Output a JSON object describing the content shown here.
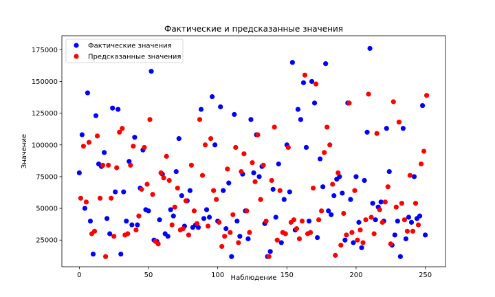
{
  "chart_data": {
    "type": "scatter",
    "title": "Фактические и предсказанные значения",
    "xlabel": "Наблюдение",
    "ylabel": "Значение",
    "xlim": [
      -12.6,
      264.6
    ],
    "ylim": [
      4000,
      186000
    ],
    "xticks": [
      0,
      50,
      100,
      150,
      200,
      250
    ],
    "xtick_labels": [
      "0",
      "50",
      "100",
      "150",
      "200",
      "250"
    ],
    "yticks": [
      25000,
      50000,
      75000,
      100000,
      125000,
      150000,
      175000
    ],
    "ytick_labels": [
      "25000",
      "50000",
      "75000",
      "100000",
      "125000",
      "150000",
      "175000"
    ],
    "grid": false,
    "legend_position": "top-left",
    "series": [
      {
        "name": "Фактические значения",
        "color": "#0000ff",
        "x": [
          0,
          2,
          4,
          6,
          8,
          10,
          12,
          14,
          16,
          18,
          20,
          22,
          24,
          26,
          28,
          30,
          32,
          34,
          36,
          38,
          40,
          42,
          44,
          46,
          48,
          50,
          52,
          54,
          56,
          58,
          60,
          62,
          64,
          66,
          68,
          70,
          72,
          74,
          76,
          78,
          80,
          82,
          84,
          86,
          88,
          90,
          92,
          94,
          96,
          98,
          100,
          102,
          104,
          106,
          108,
          110,
          112,
          114,
          116,
          118,
          120,
          122,
          124,
          126,
          128,
          130,
          132,
          134,
          136,
          138,
          140,
          142,
          144,
          146,
          148,
          150,
          152,
          154,
          156,
          158,
          160,
          162,
          164,
          166,
          168,
          170,
          172,
          174,
          176,
          178,
          180,
          182,
          184,
          186,
          188,
          190,
          192,
          194,
          196,
          198,
          200,
          202,
          204,
          206,
          208,
          210,
          212,
          214,
          216,
          218,
          220,
          222,
          224,
          226,
          228,
          230,
          232,
          234,
          236,
          238,
          240,
          242,
          244,
          246,
          248,
          250
        ],
        "y": [
          78000,
          108000,
          50000,
          141000,
          40000,
          14000,
          123000,
          85000,
          83000,
          94000,
          42000,
          30000,
          129000,
          63000,
          128000,
          14000,
          63000,
          40000,
          87000,
          37000,
          106000,
          37000,
          66000,
          96000,
          49000,
          48000,
          158000,
          25000,
          24000,
          41000,
          77000,
          30000,
          28000,
          49000,
          44000,
          79000,
          105000,
          60000,
          36000,
          56000,
          64000,
          35000,
          37000,
          35000,
          128000,
          42000,
          49000,
          43000,
          138000,
          100000,
          40000,
          130000,
          64000,
          34000,
          70000,
          12000,
          124000,
          40000,
          28000,
          77000,
          48000,
          26000,
          120000,
          78000,
          108000,
          75000,
          83000,
          38000,
          12000,
          16000,
          65000,
          43000,
          85000,
          23000,
          57000,
          100000,
          63000,
          165000,
          33000,
          128000,
          120000,
          149000,
          98000,
          40000,
          150000,
          133000,
          27000,
          89000,
          67000,
          164000,
          48000,
          45000,
          60000,
          73000,
          75000,
          62000,
          25000,
          133000,
          57000,
          23000,
          75000,
          39000,
          19000,
          72000,
          110000,
          176000,
          54000,
          41000,
          51000,
          55000,
          40000,
          113000,
          79000,
          21000,
          29000,
          40000,
          12000,
          113000,
          26000,
          43000,
          39000,
          75000,
          42000,
          44000,
          131000,
          29000
        ]
      },
      {
        "name": "Предсказанные значения",
        "color": "#ff0000",
        "x": [
          1,
          3,
          5,
          7,
          9,
          11,
          13,
          15,
          17,
          19,
          21,
          23,
          25,
          27,
          29,
          31,
          33,
          35,
          37,
          39,
          41,
          43,
          45,
          47,
          49,
          51,
          53,
          55,
          57,
          59,
          61,
          63,
          65,
          67,
          69,
          71,
          73,
          75,
          77,
          79,
          81,
          83,
          85,
          87,
          89,
          91,
          93,
          95,
          97,
          99,
          101,
          103,
          105,
          107,
          109,
          111,
          113,
          115,
          117,
          119,
          121,
          123,
          125,
          127,
          129,
          131,
          133,
          135,
          137,
          139,
          141,
          143,
          145,
          147,
          149,
          151,
          153,
          155,
          157,
          159,
          161,
          163,
          165,
          167,
          169,
          171,
          173,
          175,
          177,
          179,
          181,
          183,
          185,
          187,
          189,
          191,
          193,
          195,
          197,
          199,
          201,
          203,
          205,
          207,
          209,
          211,
          213,
          215,
          217,
          219,
          221,
          223,
          225,
          227,
          229,
          231,
          233,
          235,
          237,
          239,
          241,
          243,
          245,
          247,
          249,
          251
        ],
        "y": [
          58000,
          99000,
          55000,
          102000,
          30000,
          32000,
          107000,
          58000,
          84000,
          12000,
          84000,
          58000,
          28000,
          82000,
          110000,
          113000,
          29000,
          30000,
          84000,
          99000,
          33000,
          44000,
          65000,
          98000,
          69000,
          120000,
          61000,
          24000,
          22000,
          78000,
          74000,
          91000,
          72000,
          37000,
          51000,
          66000,
          33000,
          34000,
          56000,
          29000,
          84000,
          48000,
          38000,
          120000,
          76000,
          100000,
          36000,
          105000,
          64000,
          57000,
          39000,
          20000,
          28000,
          81000,
          31000,
          45000,
          98000,
          23000,
          79000,
          93000,
          48000,
          31000,
          86000,
          71000,
          108000,
          57000,
          84000,
          40000,
          12000,
          72000,
          114000,
          25000,
          64000,
          31000,
          30000,
          98000,
          39000,
          41000,
          34000,
          26000,
          40000,
          155000,
          30000,
          31000,
          66000,
          148000,
          41000,
          48000,
          94000,
          114000,
          100000,
          69000,
          13000,
          78000,
          21000,
          46000,
          29000,
          133000,
          31000,
          64000,
          25000,
          33000,
          23000,
          41000,
          140000,
          43000,
          30000,
          109000,
          49000,
          39000,
          55000,
          67000,
          22000,
          134000,
          51000,
          118000,
          54000,
          41000,
          32000,
          76000,
          32000,
          54000,
          37000,
          85000,
          95000,
          139000
        ]
      }
    ]
  }
}
